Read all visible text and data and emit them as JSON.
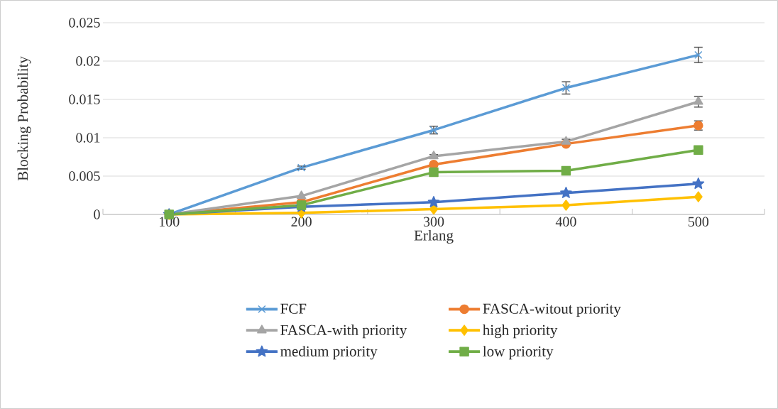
{
  "chart_data": {
    "type": "line",
    "xlabel": "Erlang",
    "ylabel": "Blocking Probability",
    "categories": [
      "100",
      "200",
      "300",
      "400",
      "500"
    ],
    "series": [
      {
        "name": "FCF",
        "color": "#5b9bd5",
        "marker": "cross",
        "values": [
          0,
          0.0061,
          0.011,
          0.0165,
          0.0208
        ],
        "errors": [
          null,
          0.0002,
          0.0005,
          0.0008,
          0.001
        ]
      },
      {
        "name": "FASCA-witout priority",
        "color": "#ed7d31",
        "marker": "circle",
        "values": [
          0,
          0.0016,
          0.0065,
          0.0092,
          0.0116
        ],
        "errors": [
          null,
          null,
          null,
          null,
          0.0006
        ]
      },
      {
        "name": "FASCA-with priority",
        "color": "#a5a5a5",
        "marker": "triangle",
        "values": [
          0,
          0.0024,
          0.0076,
          0.0095,
          0.0147
        ],
        "errors": [
          null,
          null,
          0.0002,
          0.0003,
          0.0007
        ]
      },
      {
        "name": "high priority",
        "color": "#ffc000",
        "marker": "diamond",
        "values": [
          0,
          0.0002,
          0.0007,
          0.0012,
          0.0023
        ]
      },
      {
        "name": "medium priority",
        "color": "#4472c4",
        "marker": "star",
        "values": [
          0,
          0.001,
          0.0016,
          0.0028,
          0.004
        ]
      },
      {
        "name": "low priority",
        "color": "#70ad47",
        "marker": "square",
        "values": [
          0,
          0.0012,
          0.0055,
          0.0057,
          0.0084
        ]
      }
    ],
    "ylim": [
      0,
      0.025
    ],
    "yticks": [
      0,
      0.005,
      0.01,
      0.015,
      0.02,
      0.025
    ],
    "grid": "y",
    "legend": "bottom",
    "line_style": "solid"
  }
}
